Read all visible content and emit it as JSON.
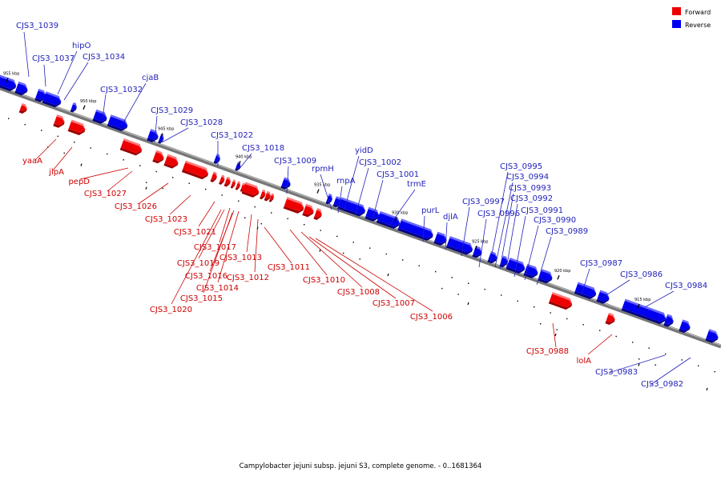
{
  "caption": "Campylobacter jejuni subsp. jejuni S3, complete genome. - 0..1681364",
  "legend": [
    {
      "label": "Forward",
      "color": "#ee0000"
    },
    {
      "label": "Reverse",
      "color": "#0000ee"
    }
  ],
  "colors": {
    "forward": "#ee0000",
    "reverse": "#0000ee",
    "backbone": "#777777",
    "leader_forward": "#cc0000",
    "leader_reverse": "#2222bb"
  },
  "ticks": [
    "955 kbp",
    "950 kbp",
    "945 kbp",
    "940 kbp",
    "935 kbp",
    "930 kbp",
    "925 kbp",
    "920 kbp",
    "915 kbp"
  ],
  "labels": [
    {
      "text": "CJS3_1039",
      "strand": "reverse"
    },
    {
      "text": "CJS3_1037",
      "strand": "reverse"
    },
    {
      "text": "hipO",
      "strand": "reverse"
    },
    {
      "text": "CJS3_1034",
      "strand": "reverse"
    },
    {
      "text": "CJS3_1032",
      "strand": "reverse"
    },
    {
      "text": "cjaB",
      "strand": "reverse"
    },
    {
      "text": "CJS3_1029",
      "strand": "reverse"
    },
    {
      "text": "CJS3_1028",
      "strand": "reverse"
    },
    {
      "text": "CJS3_1022",
      "strand": "reverse"
    },
    {
      "text": "CJS3_1018",
      "strand": "reverse"
    },
    {
      "text": "CJS3_1009",
      "strand": "reverse"
    },
    {
      "text": "yidD",
      "strand": "reverse"
    },
    {
      "text": "rpmH",
      "strand": "reverse"
    },
    {
      "text": "CJS3_1002",
      "strand": "reverse"
    },
    {
      "text": "rnpA",
      "strand": "reverse"
    },
    {
      "text": "CJS3_1001",
      "strand": "reverse"
    },
    {
      "text": "trmE",
      "strand": "reverse"
    },
    {
      "text": "purL",
      "strand": "reverse"
    },
    {
      "text": "djlA",
      "strand": "reverse"
    },
    {
      "text": "CJS3_0997",
      "strand": "reverse"
    },
    {
      "text": "CJS3_0996",
      "strand": "reverse"
    },
    {
      "text": "CJS3_0995",
      "strand": "reverse"
    },
    {
      "text": "CJS3_0994",
      "strand": "reverse"
    },
    {
      "text": "CJS3_0993",
      "strand": "reverse"
    },
    {
      "text": "CJS3_0992",
      "strand": "reverse"
    },
    {
      "text": "CJS3_0991",
      "strand": "reverse"
    },
    {
      "text": "CJS3_0990",
      "strand": "reverse"
    },
    {
      "text": "CJS3_0989",
      "strand": "reverse"
    },
    {
      "text": "CJS3_0987",
      "strand": "reverse"
    },
    {
      "text": "CJS3_0986",
      "strand": "reverse"
    },
    {
      "text": "CJS3_0984",
      "strand": "reverse"
    },
    {
      "text": "CJS3_0983",
      "strand": "reverse"
    },
    {
      "text": "CJS3_0982",
      "strand": "reverse"
    },
    {
      "text": "yaaA",
      "strand": "forward"
    },
    {
      "text": "jlpA",
      "strand": "forward"
    },
    {
      "text": "pepD",
      "strand": "forward"
    },
    {
      "text": "CJS3_1027",
      "strand": "forward"
    },
    {
      "text": "CJS3_1026",
      "strand": "forward"
    },
    {
      "text": "CJS3_1023",
      "strand": "forward"
    },
    {
      "text": "CJS3_1021",
      "strand": "forward"
    },
    {
      "text": "CJS3_1017",
      "strand": "forward"
    },
    {
      "text": "CJS3_1019",
      "strand": "forward"
    },
    {
      "text": "CJS3_1013",
      "strand": "forward"
    },
    {
      "text": "CJS3_1016",
      "strand": "forward"
    },
    {
      "text": "CJS3_1012",
      "strand": "forward"
    },
    {
      "text": "CJS3_1014",
      "strand": "forward"
    },
    {
      "text": "CJS3_1015",
      "strand": "forward"
    },
    {
      "text": "CJS3_1020",
      "strand": "forward"
    },
    {
      "text": "CJS3_1011",
      "strand": "forward"
    },
    {
      "text": "CJS3_1010",
      "strand": "forward"
    },
    {
      "text": "CJS3_1008",
      "strand": "forward"
    },
    {
      "text": "CJS3_1007",
      "strand": "forward"
    },
    {
      "text": "CJS3_1006",
      "strand": "forward"
    },
    {
      "text": "CJS3_0988",
      "strand": "forward"
    },
    {
      "text": "lolA",
      "strand": "forward"
    }
  ]
}
